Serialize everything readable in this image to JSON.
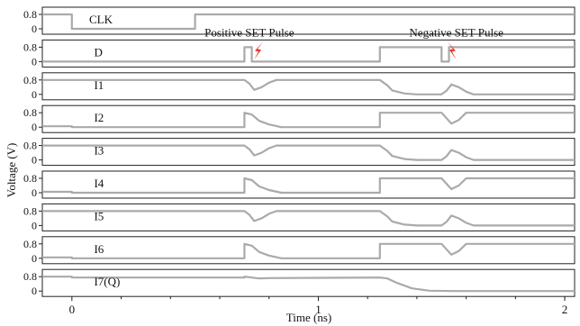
{
  "chart_data": {
    "type": "line",
    "xlabel": "Time (ns)",
    "ylabel": "Voltage (V)",
    "xlim": [
      -0.12,
      2.04
    ],
    "ylim": [
      -0.1,
      0.95
    ],
    "x_ticks": [
      {
        "value": 0,
        "label": "0"
      },
      {
        "value": 1,
        "label": "1"
      },
      {
        "value": 2,
        "label": "2"
      }
    ],
    "y_ticks": [
      {
        "value": 0,
        "label": "0"
      },
      {
        "value": 0.8,
        "label": "0.8"
      }
    ],
    "grid": false,
    "line_color": "#aaaaaa",
    "annotations": [
      {
        "text": "Positive SET Pulse",
        "x": 0.72,
        "panel": "D",
        "color": "#e8382e"
      },
      {
        "text": "Negative SET Pulse",
        "x": 1.56,
        "panel": "D",
        "color": "#e8382e"
      }
    ],
    "series": [
      {
        "name": "CLK",
        "x": [
          -0.12,
          0,
          0,
          0.5,
          0.5,
          2.04
        ],
        "y": [
          0.8,
          0.8,
          0,
          0,
          0.8,
          0.8
        ]
      },
      {
        "name": "D",
        "x": [
          -0.12,
          0.7,
          0.7,
          0.73,
          0.73,
          1.25,
          1.25,
          1.5,
          1.5,
          1.53,
          1.53,
          2.04
        ],
        "y": [
          0,
          0,
          0.8,
          0.8,
          0,
          0,
          0.8,
          0.8,
          0,
          0,
          0.8,
          0.8
        ]
      },
      {
        "name": "I1",
        "x": [
          -0.12,
          0.7,
          0.72,
          0.74,
          0.77,
          0.8,
          0.83,
          1.25,
          1.28,
          1.3,
          1.35,
          1.4,
          1.5,
          1.52,
          1.54,
          1.57,
          1.6,
          1.63,
          2.04
        ],
        "y": [
          0.8,
          0.8,
          0.6,
          0.25,
          0.4,
          0.65,
          0.8,
          0.8,
          0.5,
          0.22,
          0.05,
          0,
          0,
          0.2,
          0.55,
          0.4,
          0.15,
          0,
          0
        ]
      },
      {
        "name": "I2",
        "x": [
          -0.12,
          0,
          0,
          0.7,
          0.7,
          0.73,
          0.76,
          0.8,
          0.85,
          1.25,
          1.25,
          1.5,
          1.52,
          1.54,
          1.57,
          1.6,
          2.04
        ],
        "y": [
          0.05,
          0.05,
          0,
          0,
          0.8,
          0.7,
          0.35,
          0.15,
          0,
          0,
          0.8,
          0.8,
          0.5,
          0.2,
          0.4,
          0.8,
          0.8
        ]
      },
      {
        "name": "I3",
        "x": [
          -0.12,
          0.7,
          0.72,
          0.74,
          0.77,
          0.8,
          0.83,
          1.25,
          1.28,
          1.3,
          1.35,
          1.4,
          1.5,
          1.52,
          1.54,
          1.57,
          1.6,
          1.63,
          2.04
        ],
        "y": [
          0.8,
          0.8,
          0.6,
          0.25,
          0.4,
          0.65,
          0.8,
          0.8,
          0.5,
          0.22,
          0.05,
          0,
          0,
          0.2,
          0.55,
          0.4,
          0.15,
          0,
          0
        ]
      },
      {
        "name": "I4",
        "x": [
          -0.12,
          0,
          0,
          0.7,
          0.7,
          0.73,
          0.76,
          0.8,
          0.85,
          1.25,
          1.25,
          1.5,
          1.52,
          1.54,
          1.57,
          1.6,
          2.04
        ],
        "y": [
          0.05,
          0.05,
          0,
          0,
          0.8,
          0.7,
          0.35,
          0.15,
          0,
          0,
          0.8,
          0.8,
          0.5,
          0.2,
          0.4,
          0.8,
          0.8
        ]
      },
      {
        "name": "I5",
        "x": [
          -0.12,
          0.7,
          0.72,
          0.74,
          0.77,
          0.8,
          0.83,
          1.25,
          1.28,
          1.3,
          1.35,
          1.4,
          1.5,
          1.52,
          1.54,
          1.57,
          1.6,
          1.63,
          2.04
        ],
        "y": [
          0.8,
          0.8,
          0.6,
          0.25,
          0.4,
          0.65,
          0.8,
          0.8,
          0.5,
          0.22,
          0.05,
          0,
          0,
          0.2,
          0.55,
          0.4,
          0.15,
          0,
          0
        ]
      },
      {
        "name": "I6",
        "x": [
          -0.12,
          0,
          0,
          0.7,
          0.7,
          0.73,
          0.76,
          0.8,
          0.85,
          1.25,
          1.25,
          1.5,
          1.52,
          1.54,
          1.57,
          1.6,
          2.04
        ],
        "y": [
          0.05,
          0.05,
          0,
          0,
          0.8,
          0.7,
          0.35,
          0.15,
          0,
          0,
          0.8,
          0.8,
          0.5,
          0.2,
          0.4,
          0.8,
          0.8
        ]
      },
      {
        "name": "I7(Q)",
        "x": [
          -0.12,
          0,
          0,
          0.7,
          0.7,
          0.76,
          0.8,
          1.25,
          1.28,
          1.32,
          1.38,
          1.45,
          1.55,
          2.04
        ],
        "y": [
          0.8,
          0.8,
          0.75,
          0.75,
          0.8,
          0.7,
          0.72,
          0.75,
          0.7,
          0.45,
          0.15,
          0.02,
          0,
          0
        ]
      }
    ]
  }
}
